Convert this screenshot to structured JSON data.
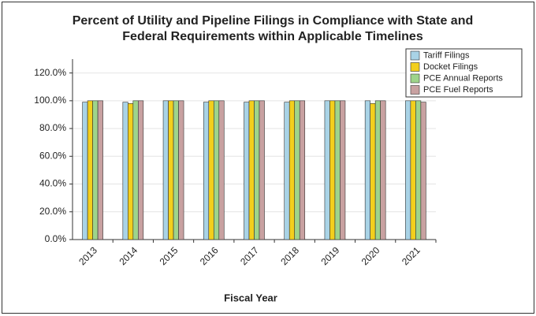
{
  "chart_data": {
    "type": "bar",
    "title": [
      "Percent of Utility and Pipeline Filings in Compliance with State and",
      "Federal Requirements within Applicable Timelines"
    ],
    "x_label": "Fiscal Year",
    "categories": [
      "2013",
      "2014",
      "2015",
      "2016",
      "2017",
      "2018",
      "2019",
      "2020",
      "2021"
    ],
    "series": [
      {
        "name": "Tariff Filings",
        "color": "#a9d3e6",
        "values": [
          99,
          99,
          100,
          99,
          99,
          99,
          100,
          100,
          100
        ]
      },
      {
        "name": "Docket Filings",
        "color": "#f3cf1d",
        "values": [
          100,
          98,
          100,
          100,
          100,
          100,
          100,
          98,
          100
        ]
      },
      {
        "name": "PCE Annual Reports",
        "color": "#9ed48b",
        "values": [
          100,
          100,
          100,
          100,
          100,
          100,
          100,
          100,
          100
        ]
      },
      {
        "name": "PCE Fuel Reports",
        "color": "#c8a1a1",
        "values": [
          100,
          100,
          100,
          100,
          100,
          100,
          100,
          100,
          99
        ]
      }
    ],
    "ylim": [
      0,
      130
    ],
    "yticks": [
      {
        "value": 0,
        "label": "0.0%"
      },
      {
        "value": 20,
        "label": "20.0%"
      },
      {
        "value": 40,
        "label": "40.0%"
      },
      {
        "value": 60,
        "label": "60.0%"
      },
      {
        "value": 80,
        "label": "80.0%"
      },
      {
        "value": 100,
        "label": "100.0%"
      },
      {
        "value": 120,
        "label": "120.0%"
      }
    ],
    "grid": true,
    "legend": "top-right"
  }
}
